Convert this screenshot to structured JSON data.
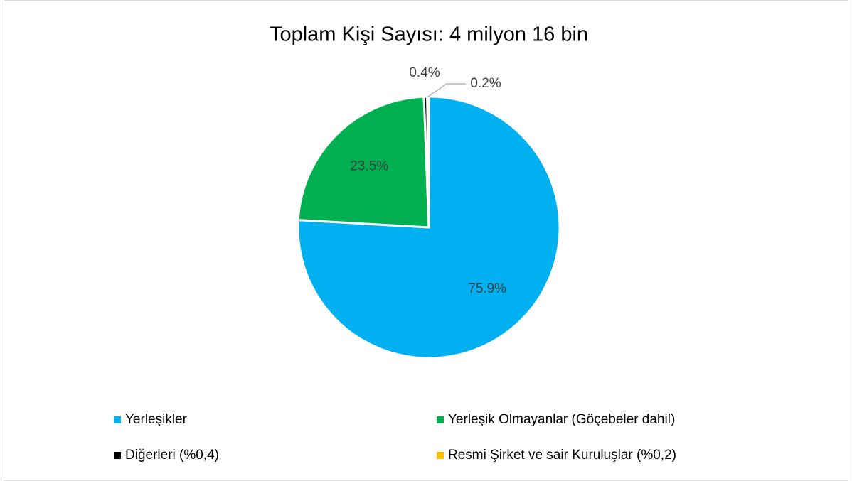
{
  "chart_data": {
    "type": "pie",
    "title": "Toplam Kişi Sayısı: 4 milyon 16 bin",
    "categories": [
      "Yerleşikler",
      "Yerleşik Olmayanlar (Göçebeler dahil)",
      "Diğerleri (%0,4)",
      "Resmi Şirket ve sair Kuruluşlar (%0,2)"
    ],
    "values": [
      75.9,
      23.5,
      0.4,
      0.2
    ],
    "value_labels": [
      "75.9%",
      "23.5%",
      "0.4%",
      "0.2%"
    ],
    "colors": [
      "#00b0f0",
      "#00b050",
      "#000000",
      "#ffc000"
    ]
  }
}
